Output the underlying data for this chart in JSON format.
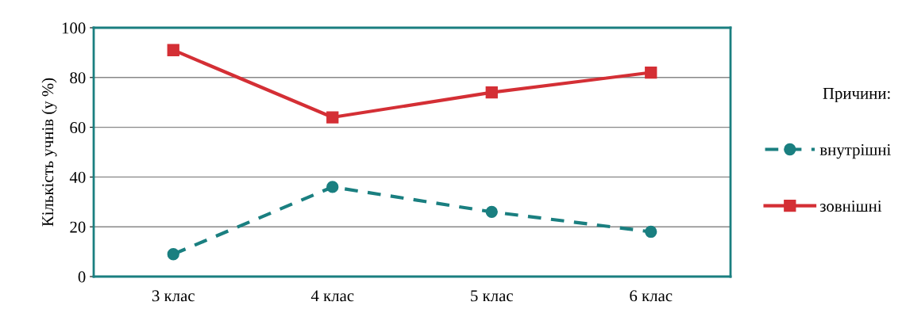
{
  "chart_data": {
    "type": "line",
    "ylabel": "Кількість учнів (у %)",
    "legend_title": "Причини:",
    "categories": [
      "3 клас",
      "4 клас",
      "5 клас",
      "6 клас"
    ],
    "series": [
      {
        "name": "внутрішні",
        "color": "#1a7f80",
        "values": [
          9,
          36,
          26,
          18
        ],
        "marker": "circle",
        "line_style": "dashed"
      },
      {
        "name": "зовнішні",
        "color": "#d42f35",
        "values": [
          91,
          64,
          74,
          82
        ],
        "marker": "square",
        "line_style": "solid"
      }
    ],
    "ylim": [
      0,
      100
    ],
    "yticks": [
      0,
      20,
      40,
      60,
      80,
      100
    ],
    "grid": "y",
    "legend": "right"
  }
}
